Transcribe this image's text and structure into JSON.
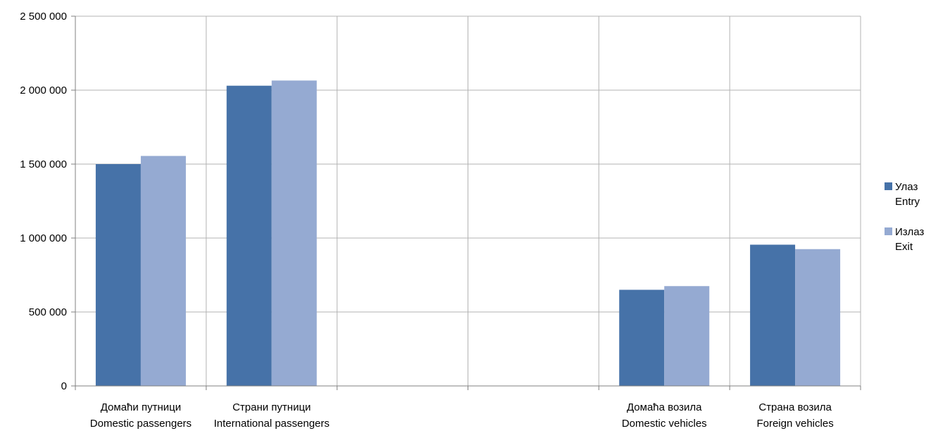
{
  "chart_data": {
    "type": "bar",
    "categories": [
      {
        "line1": "Домаћи путници",
        "line2": "Domestic passengers"
      },
      {
        "line1": "Страни путници",
        "line2": "International passengers"
      },
      {
        "line1": "",
        "line2": ""
      },
      {
        "line1": "",
        "line2": ""
      },
      {
        "line1": "Домаћа возила",
        "line2": "Domestic vehicles"
      },
      {
        "line1": "Страна возила",
        "line2": "Foreign vehicles"
      }
    ],
    "series": [
      {
        "name_line1": "Улаз",
        "name_line2": "Entry",
        "color": "#4672a8",
        "values": [
          1500000,
          2030000,
          null,
          null,
          650000,
          955000
        ]
      },
      {
        "name_line1": "Излаз",
        "name_line2": "Exit",
        "color": "#95aad2",
        "values": [
          1555000,
          2065000,
          null,
          null,
          675000,
          925000
        ]
      }
    ],
    "ylim": [
      0,
      2500000
    ],
    "yticks": [
      {
        "value": 0,
        "label": "0"
      },
      {
        "value": 500000,
        "label": "500 000"
      },
      {
        "value": 1000000,
        "label": "1 000 000"
      },
      {
        "value": 1500000,
        "label": "1 500 000"
      },
      {
        "value": 2000000,
        "label": "2 000 000"
      },
      {
        "value": 2500000,
        "label": "2 500 000"
      }
    ],
    "grid": true,
    "legend_position": "right",
    "gridline_color": "#b3b3b3",
    "axis_color": "#808080"
  }
}
